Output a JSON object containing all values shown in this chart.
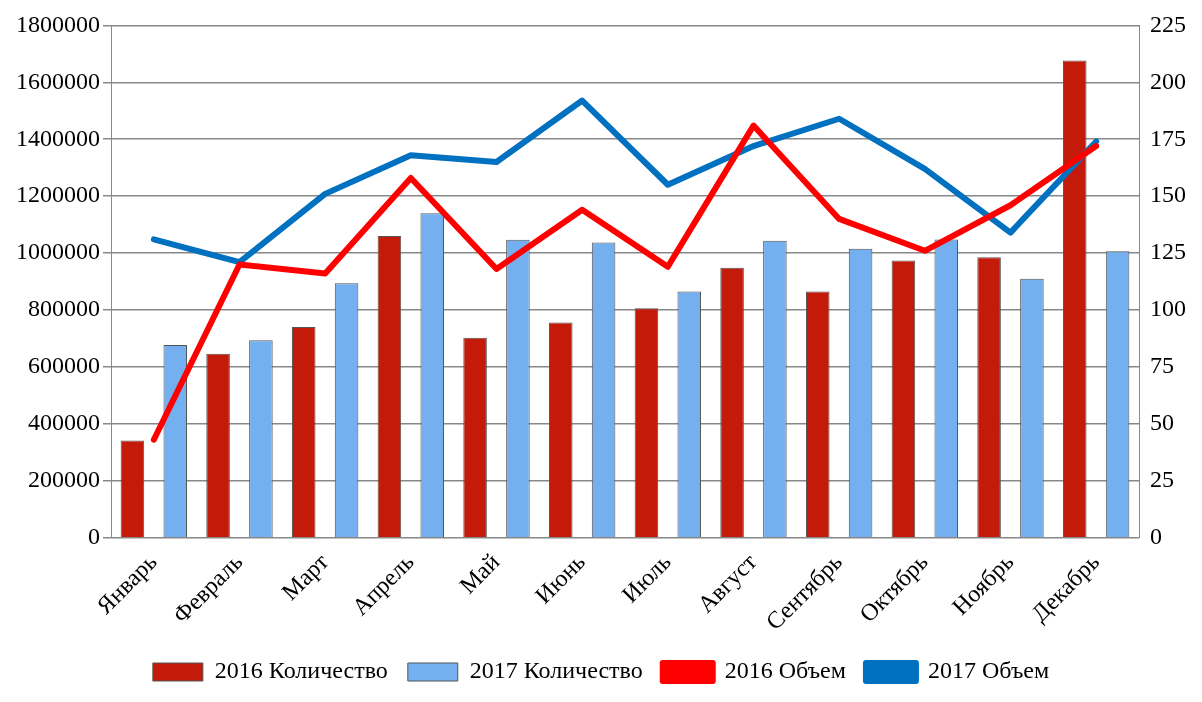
{
  "chart_data": {
    "type": "bar",
    "categories": [
      "Январь",
      "Февраль",
      "Март",
      "Апрель",
      "Май",
      "Июнь",
      "Июль",
      "Август",
      "Сентябрь",
      "Октябрь",
      "Ноябрь",
      "Декабрь"
    ],
    "series": [
      {
        "name": "2016 Количество",
        "color": "#c41a0a",
        "values": [
          341000,
          646000,
          740000,
          1060000,
          702000,
          756000,
          806000,
          948000,
          865000,
          974000,
          985000,
          1677000
        ]
      },
      {
        "name": "2017 Количество",
        "color": "#74b0f0",
        "values": [
          677000,
          694000,
          894000,
          1140000,
          1047000,
          1037000,
          865000,
          1043000,
          1015000,
          1048000,
          910000,
          1006000
        ]
      },
      {
        "name": "2016 Объем",
        "type": "line",
        "axis": "y2",
        "color": "#ff0000",
        "values": [
          43,
          120,
          116,
          158,
          118,
          144,
          119,
          181,
          140,
          126,
          146,
          172
        ]
      },
      {
        "name": "2017 Объем",
        "type": "line",
        "axis": "y2",
        "color": "#0070c0",
        "values": [
          131,
          121,
          151,
          168,
          165,
          192,
          155,
          172,
          184,
          162,
          134,
          174
        ]
      }
    ],
    "ylim": [
      0,
      1800000
    ],
    "yticks": [
      0,
      200000,
      400000,
      600000,
      800000,
      1000000,
      1200000,
      1400000,
      1600000,
      1800000
    ],
    "y2lim": [
      0,
      225
    ],
    "y2ticks": [
      0,
      25,
      50,
      75,
      100,
      125,
      150,
      175,
      200,
      225
    ],
    "grid": "y",
    "legend": "bottom",
    "marker": "none"
  }
}
